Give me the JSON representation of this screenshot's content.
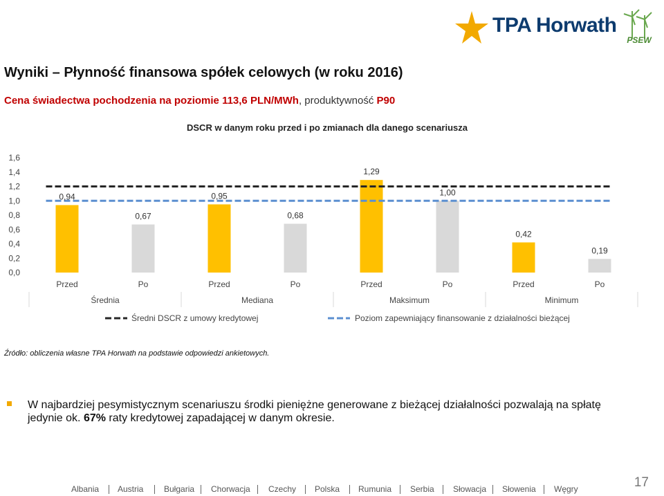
{
  "logo": {
    "text": "TPA Horwath",
    "badge": "PSEW",
    "color": "#0d3b6e",
    "accent": "#f2a900"
  },
  "slide": {
    "title": "Wyniki – Płynność finansowa spółek celowych (w roku 2016)",
    "subtitle_red_1": "Cena świadectwa pochodzenia na poziomie 113,6 PLN/MWh",
    "subtitle_plain": ", produktywność ",
    "subtitle_red_2": "P90"
  },
  "chart_data": {
    "type": "bar",
    "title": "DSCR w danym roku przed i po zmianach dla danego scenariusza",
    "groups": [
      "Średnia",
      "Mediana",
      "Maksimum",
      "Minimum"
    ],
    "categories": [
      "Przed",
      "Po",
      "Przed",
      "Po",
      "Przed",
      "Po",
      "Przed",
      "Po"
    ],
    "values": [
      0.94,
      0.67,
      0.95,
      0.68,
      1.29,
      1.0,
      0.42,
      0.19
    ],
    "data_labels": [
      "0,94",
      "0,67",
      "0,95",
      "0,68",
      "1,29",
      "1,00",
      "0,42",
      "0,19"
    ],
    "colors": [
      "#ffc000",
      "#d9d9d9",
      "#ffc000",
      "#d9d9d9",
      "#ffc000",
      "#d9d9d9",
      "#ffc000",
      "#d9d9d9"
    ],
    "y_ticks": [
      "0,0",
      "0,2",
      "0,4",
      "0,6",
      "0,8",
      "1,0",
      "1,2",
      "1,4",
      "1,6"
    ],
    "ylim": [
      0,
      1.6
    ],
    "reference_lines": [
      {
        "name": "Średni DSCR z umowy kredytowej",
        "value": 1.2,
        "style": "dashed",
        "color": "#262626"
      },
      {
        "name": "Poziom zapewniający finansowanie z działalności bieżącej",
        "value": 1.0,
        "style": "dashed",
        "color": "#5b8fd0"
      }
    ],
    "legend_position": "bottom",
    "grid": false
  },
  "source": "Źródło: obliczenia własne TPA Horwath na podstawie odpowiedzi ankietowych.",
  "bullet": {
    "text_1": "W najbardziej pesymistycznym scenariuszu środki pieniężne generowane z bieżącej działalności pozwalają na spłatę jedynie ok. ",
    "bold": "67%",
    "text_2": " raty kredytowej zapadającej w danym okresie."
  },
  "footer": {
    "countries": [
      "Albania",
      "Austria",
      "Bułgaria",
      "Chorwacja",
      "Czechy",
      "Polska",
      "Rumunia",
      "Serbia",
      "Słowacja",
      "Słowenia",
      "Węgry"
    ]
  },
  "page_number": "17"
}
